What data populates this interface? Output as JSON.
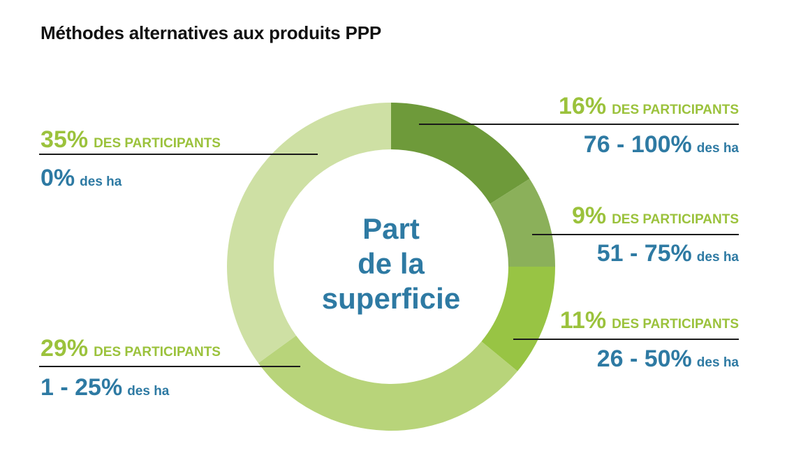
{
  "title": "Méthodes alternatives aux produits PPP",
  "colors": {
    "pct_text": "#9bc23c",
    "range_text": "#2e7aa3",
    "center_text": "#2e7aa3"
  },
  "chart_data": {
    "type": "pie",
    "center_label": [
      "Part",
      "de la",
      "superficie"
    ],
    "pct_suffix": "DES PARTICIPANTS",
    "range_suffix": "des ha",
    "slices": [
      {
        "value": 16,
        "pct_label": "16%",
        "range_label": "76 - 100%",
        "color": "#6e9a3a"
      },
      {
        "value": 9,
        "pct_label": "9%",
        "range_label": "51 - 75%",
        "color": "#8bb05a"
      },
      {
        "value": 11,
        "pct_label": "11%",
        "range_label": "26 - 50%",
        "color": "#98c444"
      },
      {
        "value": 29,
        "pct_label": "29%",
        "range_label": "1 - 25%",
        "color": "#b8d47a"
      },
      {
        "value": 35,
        "pct_label": "35%",
        "range_label": "0%",
        "color": "#cee0a4"
      }
    ]
  }
}
